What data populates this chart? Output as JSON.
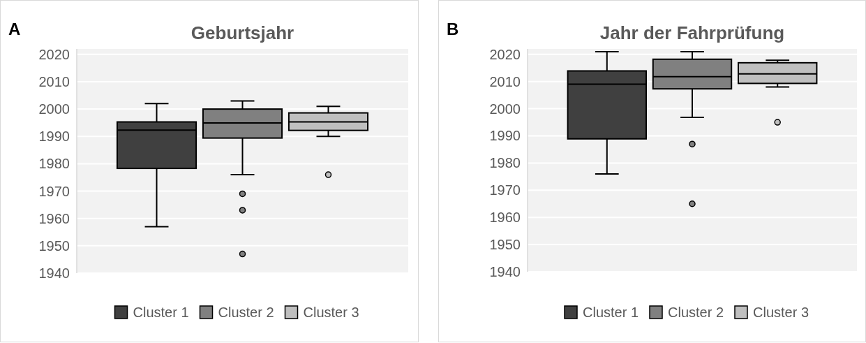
{
  "chart_data": [
    {
      "type": "box",
      "title": "Geburtsjahr",
      "annotations": [
        "A"
      ],
      "categories": [
        null
      ],
      "ylim": [
        1940,
        2022
      ],
      "yticks": [
        1940,
        1950,
        1960,
        1970,
        1980,
        1990,
        2000,
        2010,
        2020
      ],
      "grid": "y",
      "legend": "bottom",
      "series": [
        {
          "name": "Cluster 1",
          "color": "#404040",
          "boxes": [
            {
              "low": 1957,
              "q1": 1978.3,
              "median": 1992.3,
              "q3": 1995.3,
              "high": 2002
            }
          ]
        },
        {
          "name": "Cluster 2",
          "color": "#808080",
          "boxes": [
            {
              "low": 1976,
              "q1": 1989.4,
              "median": 1994.9,
              "q3": 2000,
              "high": 2003,
              "outliers": [
                1969,
                1963,
                1947
              ]
            }
          ]
        },
        {
          "name": "Cluster 3",
          "color": "#bfbfbf",
          "boxes": [
            {
              "low": 1990,
              "q1": 1992.2,
              "median": 1995.3,
              "q3": 1998.6,
              "high": 2001,
              "outliers": [
                1976
              ]
            }
          ]
        }
      ]
    },
    {
      "type": "box",
      "title": "Jahr der Fahrprüfung",
      "annotations": [
        "B"
      ],
      "categories": [
        null
      ],
      "ylim": [
        1940,
        2022
      ],
      "yticks": [
        1940,
        1950,
        1960,
        1970,
        1980,
        1990,
        2000,
        2010,
        2020
      ],
      "grid": "y",
      "legend": "bottom",
      "series": [
        {
          "name": "Cluster 1",
          "color": "#404040",
          "boxes": [
            {
              "low": 1976,
              "q1": 1988.9,
              "median": 2009,
              "q3": 2013.9,
              "high": 2021
            }
          ]
        },
        {
          "name": "Cluster 2",
          "color": "#808080",
          "boxes": [
            {
              "low": 1996.8,
              "q1": 2007.3,
              "median": 2011.8,
              "q3": 2018.2,
              "high": 2021,
              "outliers": [
                1987,
                1965
              ]
            }
          ]
        },
        {
          "name": "Cluster 3",
          "color": "#bfbfbf",
          "boxes": [
            {
              "low": 2008,
              "q1": 2009.3,
              "median": 2012.8,
              "q3": 2016.9,
              "high": 2017.8,
              "outliers": [
                1995
              ]
            }
          ]
        }
      ]
    }
  ]
}
